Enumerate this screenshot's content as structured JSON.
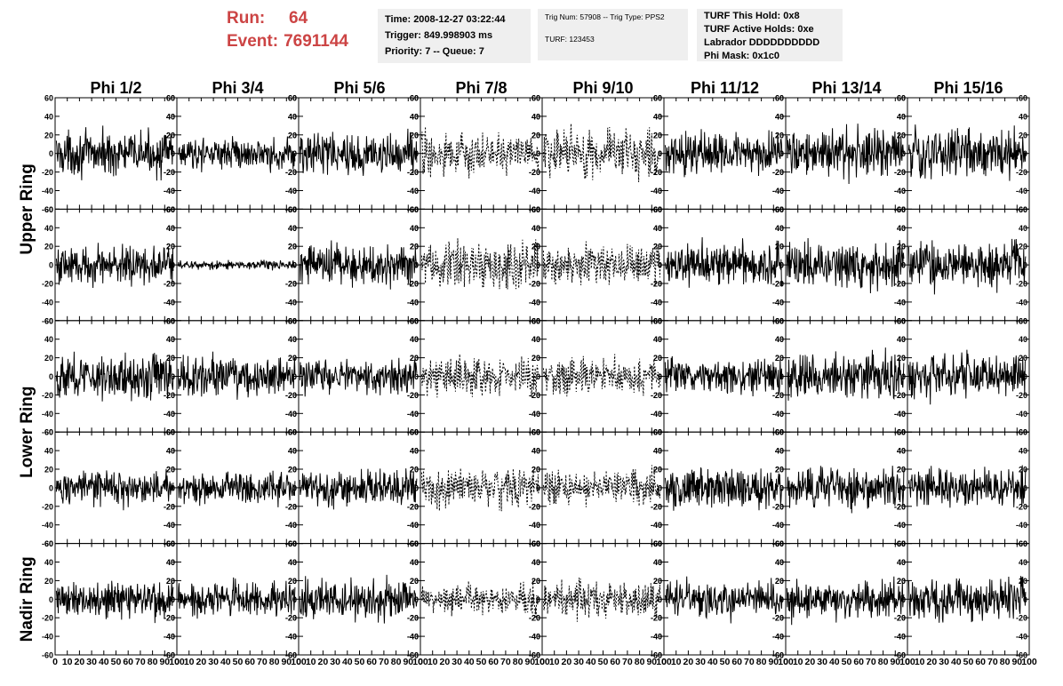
{
  "header": {
    "run_label": "Run:",
    "run_value": "64",
    "event_label": "Event:",
    "event_value": "7691144",
    "box_time": [
      "Time: 2008-12-27 03:22:44",
      "Trigger: 849.998903 ms",
      "Priority: 7 -- Queue: 7"
    ],
    "box_trig": [
      "Trig Num: 57908 -- Trig Type: PPS2",
      "TURF: 123453"
    ],
    "box_turf": [
      "TURF This Hold: 0x8",
      "TURF Active Holds: 0xe",
      "Labrador DDDDDDDDDD",
      "Phi Mask: 0x1c0"
    ]
  },
  "colors": {
    "header_text": "#cc4444",
    "box_background": "#efefef",
    "trace": "#000000"
  },
  "chart_data": {
    "type": "line",
    "columns": [
      "Phi 1/2",
      "Phi 3/4",
      "Phi 5/6",
      "Phi 7/8",
      "Phi 9/10",
      "Phi 11/12",
      "Phi 13/14",
      "Phi 15/16"
    ],
    "ring_labels": [
      "Upper Ring",
      "Lower Ring",
      "Nadir Ring"
    ],
    "trace_rows": [
      {
        "ring": "Upper Ring",
        "index": 1
      },
      {
        "ring": "Upper Ring",
        "index": 2
      },
      {
        "ring": "Lower Ring",
        "index": 1
      },
      {
        "ring": "Lower Ring",
        "index": 2
      },
      {
        "ring": "Nadir Ring",
        "index": 1
      }
    ],
    "ylim": [
      -60,
      60
    ],
    "y_ticks": [
      -60,
      -40,
      -20,
      0,
      20,
      40,
      60
    ],
    "xlim": [
      0,
      100
    ],
    "x_ticks": [
      0,
      10,
      20,
      30,
      40,
      50,
      60,
      70,
      80,
      90,
      100
    ],
    "x_tick_labels": [
      "0",
      "10",
      "20",
      "30",
      "40",
      "50",
      "60",
      "70",
      "80",
      "90",
      "100"
    ],
    "grid": false,
    "trace_amplitude": [
      [
        14,
        10,
        14,
        14,
        17,
        14,
        16,
        17
      ],
      [
        13,
        3,
        14,
        16,
        13,
        14,
        15,
        15
      ],
      [
        15,
        13,
        11,
        12,
        12,
        12,
        15,
        15
      ],
      [
        11,
        11,
        12,
        13,
        11,
        13,
        13,
        12
      ],
      [
        13,
        11,
        13,
        10,
        12,
        12,
        13,
        14
      ]
    ],
    "masked_columns": [
      3,
      4
    ],
    "line_styles": {
      "normal": "solid",
      "masked": "dotted"
    }
  }
}
